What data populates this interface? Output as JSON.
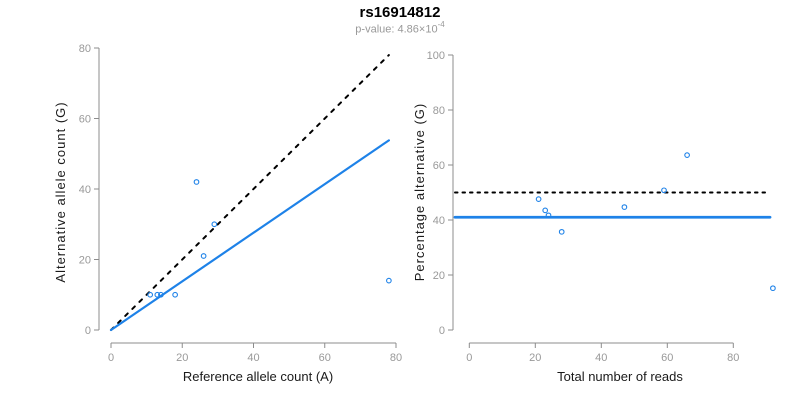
{
  "header": {
    "title": "rs16914812",
    "p_value_prefix": "p-value: 4.86×10",
    "p_value_exponent": "-4"
  },
  "colors": {
    "background": "#ffffff",
    "accent_blue": "#1e82e8",
    "line_black": "#000000",
    "axis_line": "#8c8c8c",
    "tick_label": "#999999",
    "axis_title": "#1a1a1a",
    "subtitle_gray": "#999999",
    "title_black": "#000000"
  },
  "chart_data": [
    {
      "type": "scatter",
      "name": "allele-counts-scatter",
      "xlabel": "Reference allele count (A)",
      "ylabel": "Alternative allele count (G)",
      "xlim": [
        0,
        80
      ],
      "ylim": [
        0,
        80
      ],
      "xticks": [
        0,
        20,
        40,
        60,
        80
      ],
      "yticks": [
        0,
        20,
        40,
        60,
        80
      ],
      "grid": false,
      "legend": "none",
      "points": [
        [
          11,
          10
        ],
        [
          13,
          10
        ],
        [
          14,
          10
        ],
        [
          18,
          10
        ],
        [
          24,
          42
        ],
        [
          26,
          21
        ],
        [
          29,
          30
        ],
        [
          78,
          14
        ]
      ],
      "lines": [
        {
          "name": "identity-line",
          "style": "dashed",
          "color": "black",
          "x1": 0,
          "y1": 0,
          "x2": 78,
          "y2": 78
        },
        {
          "name": "fit-line",
          "style": "solid",
          "color": "blue",
          "x1": 0,
          "y1": 0,
          "x2": 78,
          "y2": 53.8
        }
      ]
    },
    {
      "type": "scatter",
      "name": "percentage-scatter",
      "xlabel": "Total number of reads",
      "ylabel": "Percentage alternative (G)",
      "xlim": [
        0,
        92
      ],
      "ylim": [
        0,
        100
      ],
      "xticks": [
        0,
        20,
        40,
        60,
        80
      ],
      "yticks": [
        0,
        20,
        40,
        60,
        80,
        100
      ],
      "grid": false,
      "legend": "none",
      "points": [
        [
          21,
          47.6
        ],
        [
          23,
          43.5
        ],
        [
          24,
          41.7
        ],
        [
          28,
          35.7
        ],
        [
          47,
          44.7
        ],
        [
          59,
          50.8
        ],
        [
          66,
          63.6
        ],
        [
          92,
          15.2
        ]
      ],
      "hlines": [
        {
          "name": "expected-percentage-line",
          "style": "dotted",
          "color": "black",
          "y": 50
        },
        {
          "name": "fitted-percentage-line",
          "style": "solid",
          "color": "blue",
          "y": 41
        }
      ]
    }
  ]
}
